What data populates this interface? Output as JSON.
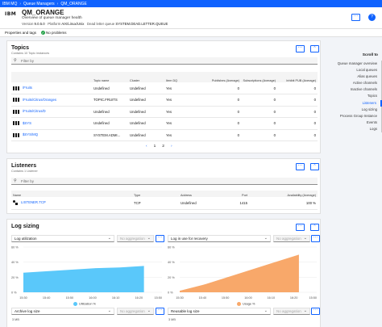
{
  "topbar": {
    "brand": "IBM MQ",
    "crumb1": "Queue Managers",
    "crumb2": "QM_ORANGE"
  },
  "header": {
    "logo": "IBM",
    "title": "QM_ORANGE",
    "subtitle": "Overview of queue manager health",
    "version_label": "Version",
    "version": "9.0.5.0",
    "platform_label": "Platform",
    "platform": "AIX/Linux/Unix",
    "dlq_label": "Dead letter queue",
    "dlq": "SYSTEM.DEAD.LETTER.QUEUE",
    "overflow": "···",
    "help": "?"
  },
  "tabs": {
    "props": "Properties and tags",
    "status": "No problems"
  },
  "topics": {
    "title": "Topics",
    "subtitle": "Contains 10 Topic instances",
    "filter_placeholder": "Filter by",
    "overflow": "···",
    "columns": [
      "",
      "Topic name",
      "Cluster",
      "Item DQ",
      "Publishes (Average)",
      "Subscriptions (Average)",
      "Inhibit PUB (Average)"
    ],
    "rows": [
      {
        "name": "/Fruits",
        "topic_name": "Undefined",
        "cluster": "Undefined",
        "dq": "Yes",
        "pub": "0",
        "sub": "0",
        "inh": "0"
      },
      {
        "name": "/Fruits/Citrus/Oranges",
        "topic_name": "TOPIC.FRUITS",
        "cluster": "Undefined",
        "dq": "Yes",
        "pub": "0",
        "sub": "0",
        "inh": "0"
      },
      {
        "name": "/Fruits/Citrus/D",
        "topic_name": "Undefined",
        "cluster": "Undefined",
        "dq": "Yes",
        "pub": "0",
        "sub": "0",
        "inh": "0"
      },
      {
        "name": "$SYS",
        "topic_name": "Undefined",
        "cluster": "Undefined",
        "dq": "Yes",
        "pub": "0",
        "sub": "0",
        "inh": "0"
      },
      {
        "name": "$SYS/MQ",
        "topic_name": "SYSTEM.ADMI...",
        "cluster": "Undefined",
        "dq": "Yes",
        "pub": "0",
        "sub": "0",
        "inh": "0"
      }
    ],
    "pager": {
      "prev": "‹",
      "p1": "1",
      "p2": "2",
      "next": "›"
    }
  },
  "listeners": {
    "title": "Listeners",
    "subtitle": "Contains 1 Listener",
    "filter_placeholder": "Filter by",
    "overflow": "···",
    "columns": [
      "Name",
      "Type",
      "Address",
      "Port",
      "Availability (Average)"
    ],
    "rows": [
      {
        "name": "LISTENER.TCP",
        "type": "TCP",
        "address": "Undefined",
        "port": "1415",
        "avail": "100 %"
      }
    ]
  },
  "logsizing": {
    "title": "Log sizing",
    "overflow": "···",
    "chart1": {
      "metric": "Log utilization",
      "agg": "No aggregation",
      "overflow": "···",
      "yticks": [
        "60 %",
        "40 %",
        "20 %",
        "0 %"
      ],
      "xticks": [
        "15:30",
        "15:40",
        "15:50",
        "16:00",
        "16:10",
        "16:20",
        "15:50"
      ],
      "legend": "Utilization %",
      "color": "#5ac8fa",
      "chart_data": {
        "type": "area",
        "ylim": [
          0,
          60
        ],
        "x": [
          "15:30",
          "15:40",
          "15:50",
          "16:00",
          "16:10",
          "16:20"
        ],
        "values": [
          26,
          28,
          30,
          32,
          33,
          35
        ]
      }
    },
    "chart2": {
      "metric": "Log in use for recovery",
      "agg": "No aggregation",
      "overflow": "···",
      "yticks": [
        "60 %",
        "40 %",
        "20 %",
        "0 %"
      ],
      "xticks": [
        "15:30",
        "15:40",
        "15:50",
        "16:00",
        "16:10",
        "16:20",
        "15:50"
      ],
      "legend": "Usage %",
      "color": "#f8a86a",
      "chart_data": {
        "type": "area",
        "ylim": [
          0,
          60
        ],
        "x": [
          "15:30",
          "15:40",
          "15:50",
          "16:00",
          "16:10",
          "16:20"
        ],
        "values": [
          2,
          10,
          20,
          30,
          40,
          50
        ]
      }
    },
    "chart3": {
      "metric": "Archive log size",
      "agg": "No aggregation",
      "overflow": "···",
      "ytick": "3 MB"
    },
    "chart4": {
      "metric": "Reusable log size",
      "agg": "No aggregation",
      "overflow": "···",
      "ytick": "3 MB"
    }
  },
  "nav": {
    "scroll_to": "Scroll to",
    "items": [
      "Queue manager overview",
      "Local queues",
      "Alias queues",
      "Active channels",
      "Inactive channels",
      "Topics",
      "Listeners",
      "Log sizing",
      "Process Group Instance",
      "Events",
      "Logs"
    ],
    "active_index": 6
  }
}
